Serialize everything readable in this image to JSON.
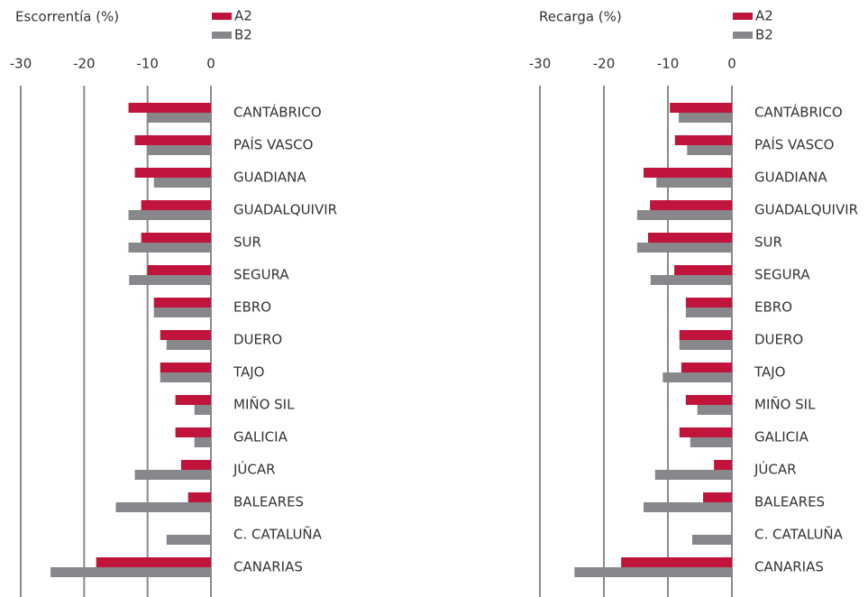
{
  "chart_data": [
    {
      "type": "barh",
      "title": "Escorrentía (%)",
      "categories": [
        "CANTÁBRICO",
        "PAÍS VASCO",
        "GUADIANA",
        "GUADALQUIVIR",
        "SUR",
        "SEGURA",
        "EBRO",
        "DUERO",
        "TAJO",
        "MIÑO SIL",
        "GALICIA",
        "JÚCAR",
        "BALEARES",
        "C. CATALUÑA",
        "CANARIAS"
      ],
      "series": [
        {
          "name": "A2",
          "color": "#c0143c",
          "values": [
            -13,
            -12,
            -12,
            -11,
            -11,
            -10,
            -9,
            -8,
            -8,
            -5.6,
            -5.6,
            -4.7,
            -3.6,
            0,
            -18.1
          ]
        },
        {
          "name": "B2",
          "color": "#87878c",
          "values": [
            -10,
            -10,
            -9,
            -13,
            -13,
            -12.9,
            -9,
            -7,
            -8,
            -2.6,
            -2.6,
            -12,
            -15,
            -7,
            -25.3
          ]
        }
      ],
      "xlim": [
        -30,
        0
      ],
      "xticks": [
        -30,
        -20,
        -10,
        0
      ],
      "grid": true
    },
    {
      "type": "barh",
      "title": "Recarga (%)",
      "categories": [
        "CANTÁBRICO",
        "PAÍS VASCO",
        "GUADIANA",
        "GUADALQUIVIR",
        "SUR",
        "SEGURA",
        "EBRO",
        "DUERO",
        "TAJO",
        "MIÑO SIL",
        "GALICIA",
        "JÚCAR",
        "BALEARES",
        "C. CATALUÑA",
        "CANARIAS"
      ],
      "series": [
        {
          "name": "A2",
          "color": "#c0143c",
          "values": [
            -9.7,
            -8.9,
            -13.8,
            -12.8,
            -13.1,
            -9,
            -7.2,
            -8.2,
            -7.9,
            -7.2,
            -8.2,
            -2.8,
            -4.5,
            0,
            -17.3
          ]
        },
        {
          "name": "B2",
          "color": "#87878c",
          "values": [
            -8.3,
            -7,
            -11.8,
            -14.8,
            -14.8,
            -12.7,
            -7.2,
            -8.2,
            -10.8,
            -5.4,
            -6.5,
            -12,
            -13.8,
            -6.2,
            -24.6
          ]
        }
      ],
      "xlim": [
        -30,
        0
      ],
      "xticks": [
        -30,
        -20,
        -10,
        0
      ],
      "grid": true
    }
  ]
}
